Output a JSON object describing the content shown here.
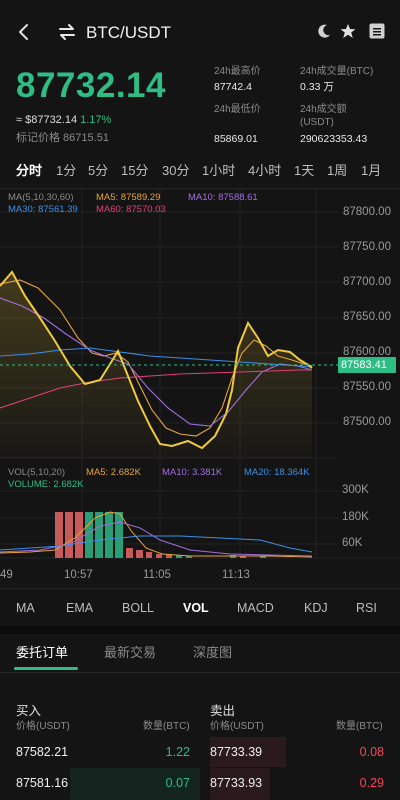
{
  "header": {
    "pair": "BTC/USDT",
    "icons": [
      "back-icon",
      "swap-icon",
      "moon-icon",
      "star-icon",
      "menu-icon"
    ]
  },
  "price": {
    "last": "87732.14",
    "fiat": "≈ $87732.14",
    "change_pct": "1.17%",
    "mark": "标记价格 86715.51",
    "colors": {
      "up": "#2ebd85",
      "down": "#f6465d"
    }
  },
  "stats": {
    "high_label": "24h最高价",
    "high_value": "87742.4",
    "volume_label": "24h成交量(BTC)",
    "volume_value": "0.33 万",
    "low_label": "24h最低价",
    "low_value": "85869.01",
    "turnover_label_1": "24h成交额",
    "turnover_label_2": "(USDT)",
    "turnover_value": "290623353.43"
  },
  "timeframes": [
    "分时",
    "1分",
    "5分",
    "15分",
    "30分",
    "1小时",
    "4小时",
    "1天",
    "1周",
    "1月"
  ],
  "chart": {
    "ma_header": "MA(5,10,30,60)",
    "ma5": "MA5: 87589.29",
    "ma10": "MA10: 87588.61",
    "ma30": "MA30: 87561.39",
    "ma60": "MA60: 87570.03",
    "price_ticks": [
      "87800.00",
      "87750.00",
      "87700.00",
      "87650.00",
      "87600.00",
      "87550.00",
      "87500.00"
    ],
    "current_price_tag": "87583.41",
    "vol_header": "VOL(5,10,20)",
    "vol_ma5": "MA5: 2.682K",
    "vol_ma10": "MA10: 3.381K",
    "vol_ma20": "MA20: 18.364K",
    "volume": "VOLUME: 2.682K",
    "vol_ticks": [
      "300K",
      "180K",
      "60K"
    ],
    "time_ticks": [
      "49",
      "10:57",
      "11:05",
      "11:13"
    ],
    "colors": {
      "price": "#f0c93c",
      "ma5": "#e8a33d",
      "ma10": "#a26ee0",
      "ma30": "#3d8fe8",
      "ma60": "#e0407a"
    }
  },
  "indicators": [
    "MA",
    "EMA",
    "BOLL",
    "VOL",
    "MACD",
    "KDJ",
    "RSI"
  ],
  "tabs": [
    "委托订单",
    "最新交易",
    "深度图"
  ],
  "orderbook": {
    "buy_title": "买入",
    "sell_title": "卖出",
    "price_head": "价格(USDT)",
    "qty_head": "数量(BTC)",
    "rows": [
      {
        "bid_price": "87582.21",
        "bid_qty": "1.22",
        "ask_price": "87733.39",
        "ask_qty": "0.08"
      },
      {
        "bid_price": "87581.16",
        "bid_qty": "0.07",
        "ask_price": "87733.93",
        "ask_qty": "0.29"
      }
    ]
  }
}
